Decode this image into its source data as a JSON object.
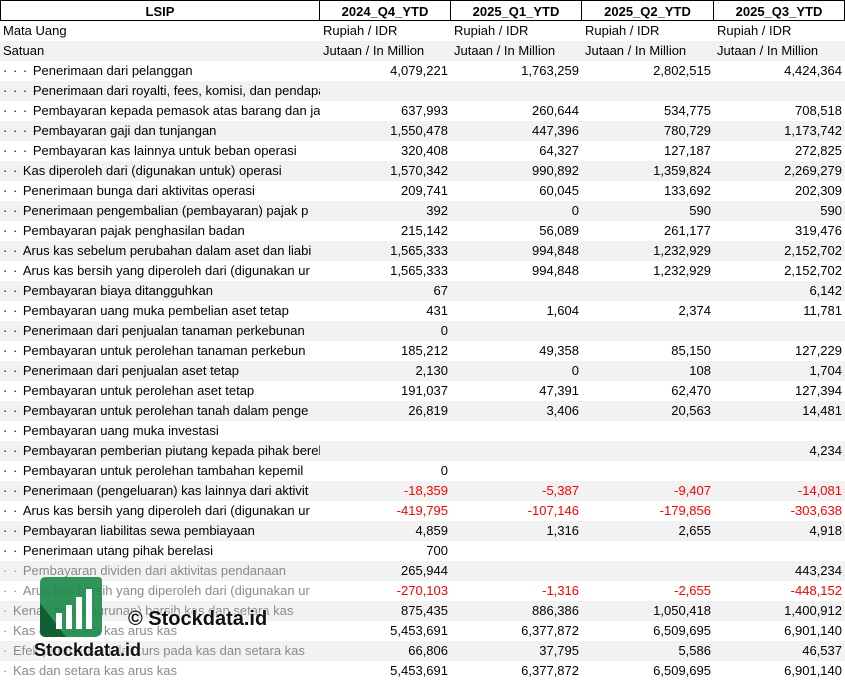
{
  "table": {
    "header": [
      "LSIP",
      "2024_Q4_YTD",
      "2025_Q1_YTD",
      "2025_Q2_YTD",
      "2025_Q3_YTD"
    ],
    "meta_rows": [
      {
        "label": "Mata Uang",
        "values": [
          "Rupiah / IDR",
          "Rupiah / IDR",
          "Rupiah / IDR",
          "Rupiah / IDR"
        ]
      },
      {
        "label": "Satuan",
        "values": [
          "Jutaan / In Million",
          "Jutaan / In Million",
          "Jutaan / In Million",
          "Jutaan / In Million"
        ]
      }
    ],
    "rows": [
      {
        "indent": "· · · ",
        "label": "Penerimaan dari pelanggan",
        "values": [
          "4,079,221",
          "1,763,259",
          "2,802,515",
          "4,424,364"
        ]
      },
      {
        "indent": "· · · ",
        "label": "Penerimaan dari royalti, fees, komisi, dan pendapatan lain",
        "values": [
          "",
          "",
          "",
          ""
        ]
      },
      {
        "indent": "· · · ",
        "label": "Pembayaran kepada pemasok atas barang dan ja",
        "values": [
          "637,993",
          "260,644",
          "534,775",
          "708,518"
        ]
      },
      {
        "indent": "· · · ",
        "label": "Pembayaran gaji dan tunjangan",
        "values": [
          "1,550,478",
          "447,396",
          "780,729",
          "1,173,742"
        ]
      },
      {
        "indent": "· · · ",
        "label": "Pembayaran kas lainnya untuk beban operasi",
        "values": [
          "320,408",
          "64,327",
          "127,187",
          "272,825"
        ]
      },
      {
        "indent": "· · ",
        "label": "Kas diperoleh dari (digunakan untuk) operasi",
        "values": [
          "1,570,342",
          "990,892",
          "1,359,824",
          "2,269,279"
        ]
      },
      {
        "indent": "· · ",
        "label": "Penerimaan bunga dari aktivitas operasi",
        "values": [
          "209,741",
          "60,045",
          "133,692",
          "202,309"
        ]
      },
      {
        "indent": "· · ",
        "label": "Penerimaan pengembalian (pembayaran) pajak p",
        "values": [
          "392",
          "0",
          "590",
          "590"
        ]
      },
      {
        "indent": "· · ",
        "label": "Pembayaran pajak penghasilan badan",
        "values": [
          "215,142",
          "56,089",
          "261,177",
          "319,476"
        ]
      },
      {
        "indent": "· · ",
        "label": "Arus kas sebelum perubahan dalam aset dan liabi",
        "values": [
          "1,565,333",
          "994,848",
          "1,232,929",
          "2,152,702"
        ]
      },
      {
        "indent": "· · ",
        "label": "Arus kas bersih yang diperoleh dari (digunakan ur",
        "values": [
          "1,565,333",
          "994,848",
          "1,232,929",
          "2,152,702"
        ]
      },
      {
        "indent": "· · ",
        "label": "Pembayaran biaya ditangguhkan",
        "values": [
          "67",
          "",
          "",
          "6,142"
        ]
      },
      {
        "indent": "· · ",
        "label": "Pembayaran uang muka pembelian aset tetap",
        "values": [
          "431",
          "1,604",
          "2,374",
          "11,781"
        ]
      },
      {
        "indent": "· · ",
        "label": "Penerimaan dari penjualan tanaman perkebunan",
        "values": [
          "0",
          "",
          "",
          ""
        ]
      },
      {
        "indent": "· · ",
        "label": "Pembayaran untuk perolehan tanaman perkebun",
        "values": [
          "185,212",
          "49,358",
          "85,150",
          "127,229"
        ]
      },
      {
        "indent": "· · ",
        "label": "Penerimaan dari penjualan aset tetap",
        "values": [
          "2,130",
          "0",
          "108",
          "1,704"
        ]
      },
      {
        "indent": "· · ",
        "label": "Pembayaran untuk perolehan aset tetap",
        "values": [
          "191,037",
          "47,391",
          "62,470",
          "127,394"
        ]
      },
      {
        "indent": "· · ",
        "label": "Pembayaran untuk perolehan tanah dalam penge",
        "values": [
          "26,819",
          "3,406",
          "20,563",
          "14,481"
        ]
      },
      {
        "indent": "· · ",
        "label": "Pembayaran uang muka investasi",
        "values": [
          "",
          "",
          "",
          ""
        ]
      },
      {
        "indent": "· · ",
        "label": "Pembayaran pemberian piutang kepada pihak berelasi",
        "values": [
          "",
          "",
          "",
          "4,234"
        ]
      },
      {
        "indent": "· · ",
        "label": "Pembayaran untuk perolehan tambahan kepemil",
        "values": [
          "0",
          "",
          "",
          ""
        ]
      },
      {
        "indent": "· · ",
        "label": "Penerimaan (pengeluaran) kas lainnya dari aktivit",
        "values": [
          "-18,359",
          "-5,387",
          "-9,407",
          "-14,081"
        ]
      },
      {
        "indent": "· · ",
        "label": "Arus kas bersih yang diperoleh dari (digunakan ur",
        "values": [
          "-419,795",
          "-107,146",
          "-179,856",
          "-303,638"
        ]
      },
      {
        "indent": "· · ",
        "label": "Pembayaran liabilitas sewa pembiayaan",
        "values": [
          "4,859",
          "1,316",
          "2,655",
          "4,918"
        ]
      },
      {
        "indent": "· · ",
        "label": "Penerimaan utang pihak berelasi",
        "values": [
          "700",
          "",
          "",
          ""
        ]
      },
      {
        "indent": "· · ",
        "label": "Pembayaran dividen dari aktivitas pendanaan",
        "values": [
          "265,944",
          "",
          "",
          "443,234"
        ]
      },
      {
        "indent": "· · ",
        "label": "Arus kas bersih yang diperoleh dari (digunakan ur",
        "values": [
          "-270,103",
          "-1,316",
          "-2,655",
          "-448,152"
        ]
      },
      {
        "indent": "· ",
        "label": "Kenaikan (penurunan) bersih kas dan setara kas",
        "values": [
          "875,435",
          "886,386",
          "1,050,418",
          "1,400,912"
        ]
      },
      {
        "indent": "· ",
        "label": "Kas dan setara kas arus kas",
        "values": [
          "5,453,691",
          "6,377,872",
          "6,509,695",
          "6,901,140"
        ]
      },
      {
        "indent": "· ",
        "label": "Efek perubahan nilai kurs pada kas dan setara kas",
        "values": [
          "66,806",
          "37,795",
          "5,586",
          "46,537"
        ]
      },
      {
        "indent": "· ",
        "label": "Kas dan setara kas arus kas",
        "values": [
          "5,453,691",
          "6,377,872",
          "6,509,695",
          "6,901,140"
        ]
      }
    ]
  },
  "watermark": {
    "copyright": "© Stockdata.id",
    "name": "Stockdata.id",
    "logo_color": "#1e8a4c"
  }
}
